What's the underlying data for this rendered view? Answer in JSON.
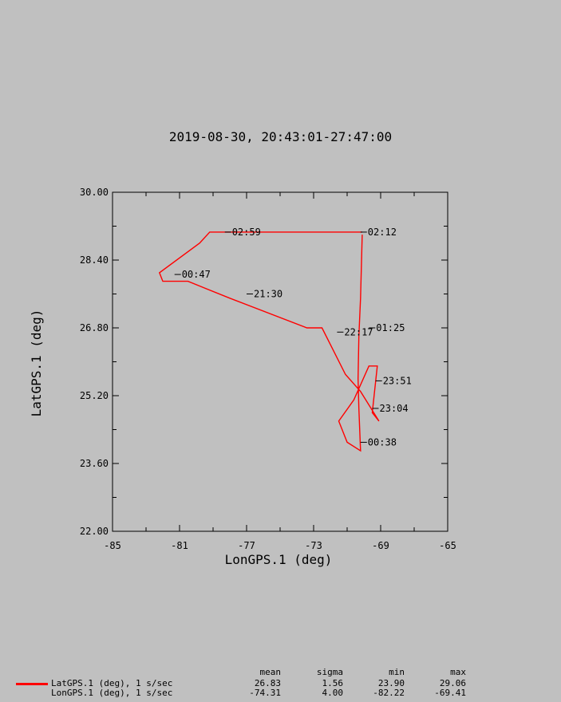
{
  "title": "2019-08-30, 20:43:01-27:47:00",
  "colors": {
    "background": "#c0c0c0",
    "track": "#ff0000",
    "axis": "#000000"
  },
  "chart_data": {
    "type": "line",
    "xlabel": "LonGPS.1 (deg)",
    "ylabel": "LatGPS.1 (deg)",
    "xlim": [
      -85,
      -65
    ],
    "ylim": [
      22.0,
      30.0
    ],
    "x_ticks": [
      -85,
      -81,
      -77,
      -73,
      -69,
      -65
    ],
    "y_ticks": [
      "22.00",
      "23.60",
      "25.20",
      "26.80",
      "28.40",
      "30.00"
    ],
    "series": [
      {
        "points": [
          [
            -70.1,
            29.0
          ],
          [
            -70.2,
            27.5
          ],
          [
            -70.3,
            26.6
          ],
          [
            -70.35,
            25.6
          ],
          [
            -70.3,
            24.9
          ],
          [
            -70.2,
            23.9
          ],
          [
            -71.0,
            24.1
          ],
          [
            -71.5,
            24.6
          ],
          [
            -70.6,
            25.1
          ],
          [
            -69.7,
            25.9
          ],
          [
            -69.2,
            25.9
          ],
          [
            -69.5,
            24.8
          ],
          [
            -69.1,
            24.6
          ],
          [
            -70.2,
            25.3
          ],
          [
            -71.1,
            25.7
          ],
          [
            -72.5,
            26.8
          ],
          [
            -73.4,
            26.8
          ],
          [
            -78.0,
            27.5
          ],
          [
            -80.5,
            27.9
          ],
          [
            -82.0,
            27.9
          ],
          [
            -82.2,
            28.1
          ],
          [
            -79.8,
            28.8
          ],
          [
            -79.2,
            29.06
          ],
          [
            -70.1,
            29.06
          ]
        ]
      }
    ],
    "annotations": [
      {
        "text": "02:12",
        "x": -70.2,
        "y": 29.06
      },
      {
        "text": "02:59",
        "x": -78.3,
        "y": 29.06
      },
      {
        "text": "00:47",
        "x": -81.3,
        "y": 28.06
      },
      {
        "text": "21:30",
        "x": -77.0,
        "y": 27.6
      },
      {
        "text": "22:17",
        "x": -71.6,
        "y": 26.7
      },
      {
        "text": "01:25",
        "x": -69.7,
        "y": 26.8
      },
      {
        "text": "23:51",
        "x": -69.3,
        "y": 25.55
      },
      {
        "text": "23:04",
        "x": -69.5,
        "y": 24.9
      },
      {
        "text": "00:38",
        "x": -70.2,
        "y": 24.1
      }
    ],
    "grid": false
  },
  "stats": {
    "headers": [
      "mean",
      "sigma",
      "min",
      "max"
    ],
    "rows": [
      {
        "label": "LatGPS.1 (deg), 1 s/sec",
        "mean": "26.83",
        "sigma": "1.56",
        "min": "23.90",
        "max": "29.06",
        "color": "#ff0000"
      },
      {
        "label": "LonGPS.1 (deg), 1 s/sec",
        "mean": "-74.31",
        "sigma": "4.00",
        "min": "-82.22",
        "max": "-69.41",
        "color": ""
      }
    ]
  }
}
